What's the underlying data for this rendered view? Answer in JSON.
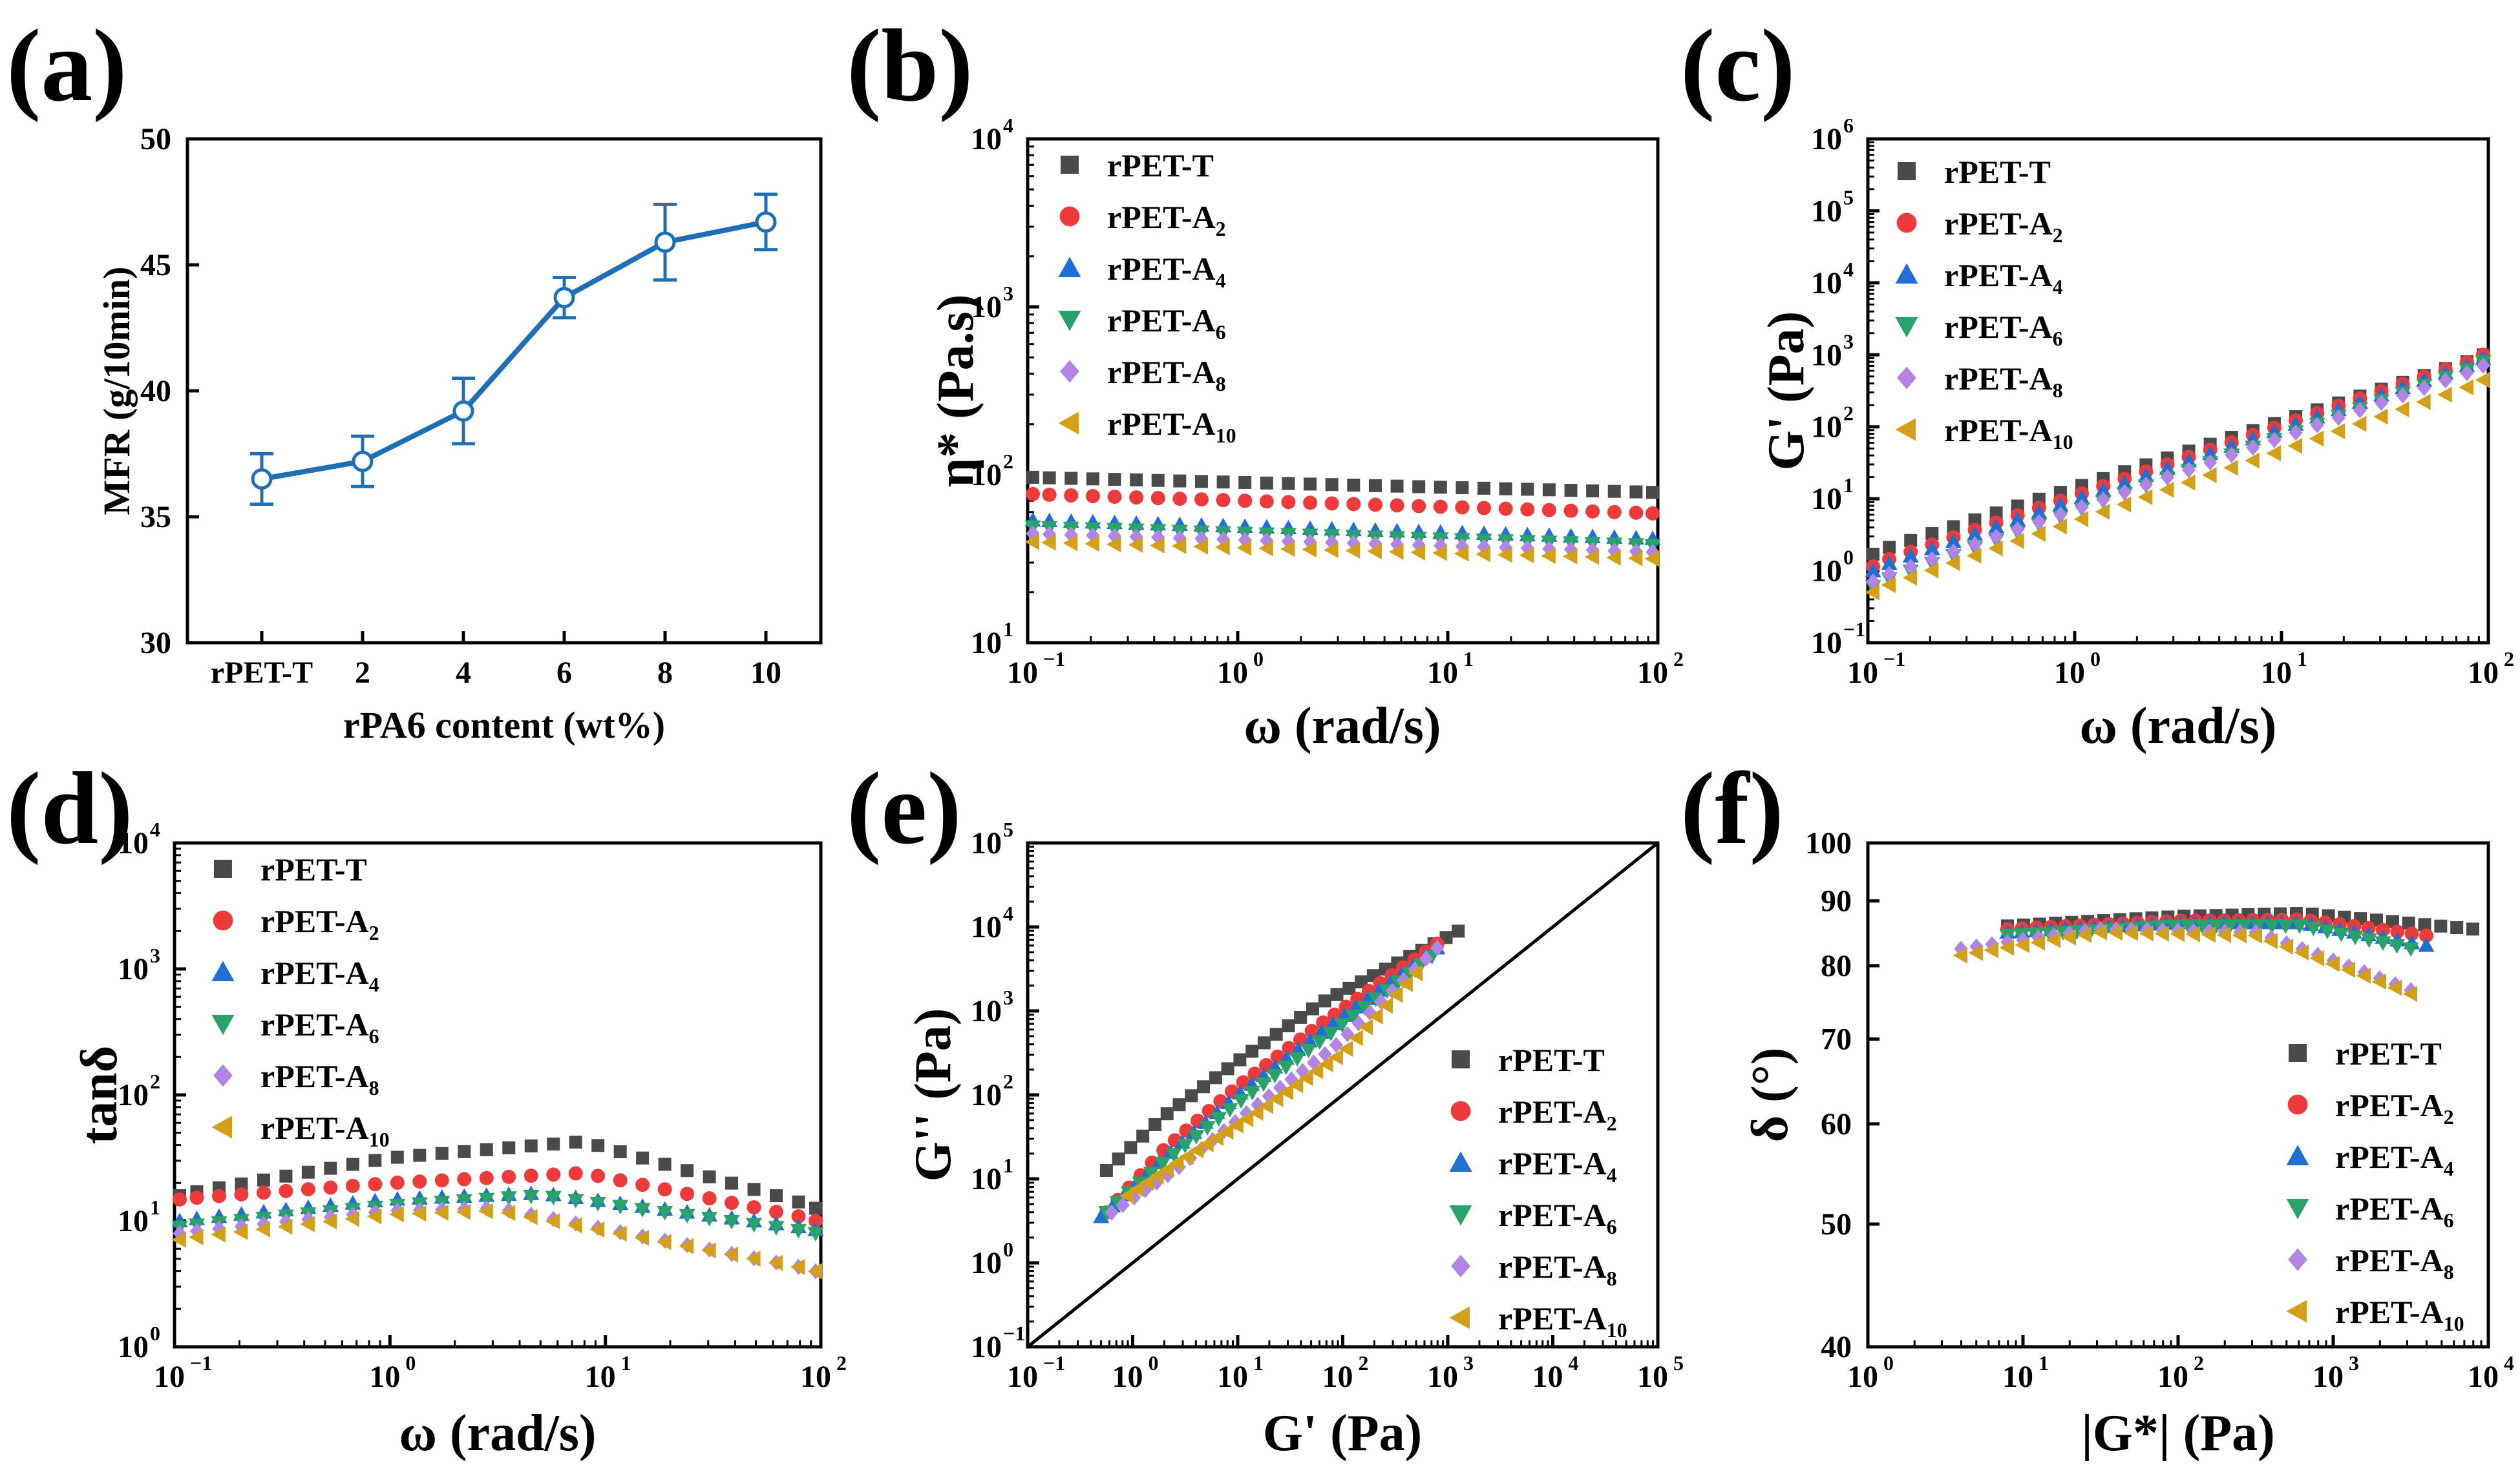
{
  "series_styles": [
    {
      "name": "rPET-T",
      "sub": "",
      "color": "#4a4a4a",
      "marker": "square"
    },
    {
      "name": "rPET-A",
      "sub": "2",
      "color": "#ee3a3a",
      "marker": "circle"
    },
    {
      "name": "rPET-A",
      "sub": "4",
      "color": "#1f6fd6",
      "marker": "triangle-up"
    },
    {
      "name": "rPET-A",
      "sub": "6",
      "color": "#2aa36b",
      "marker": "triangle-down"
    },
    {
      "name": "rPET-A",
      "sub": "8",
      "color": "#b184e6",
      "marker": "diamond"
    },
    {
      "name": "rPET-A",
      "sub": "10",
      "color": "#d4a017",
      "marker": "triangle-left"
    }
  ],
  "chart_data": [
    {
      "id": "a",
      "panel_label": "(a)",
      "type": "line",
      "xlabel": "rPA6 content (wt%)",
      "ylabel": "MFR (g/10min)",
      "categories": [
        "rPET-T",
        "2",
        "4",
        "6",
        "8",
        "10"
      ],
      "values": [
        36.5,
        37.2,
        39.2,
        43.7,
        45.9,
        46.7
      ],
      "errors": [
        1.0,
        1.0,
        1.3,
        0.8,
        1.5,
        1.1
      ],
      "ylim": [
        30,
        50
      ],
      "yticks": [
        "30",
        "35",
        "40",
        "45",
        "50"
      ],
      "color": "#1f6fb4"
    },
    {
      "id": "b",
      "panel_label": "(b)",
      "type": "scatter",
      "xscale": "log",
      "yscale": "log",
      "xlabel": "ω (rad/s)",
      "ylabel": "η* (Pa.s)",
      "xlim_exp": [
        -1,
        2
      ],
      "ylim_exp": [
        1,
        4
      ],
      "legend": "top-left",
      "series": [
        {
          "name": "rPET-T",
          "x_exp": [
            -1,
            2
          ],
          "y_exp": [
            1.985,
            1.895
          ]
        },
        {
          "name": "rPET-A2",
          "x_exp": [
            -1,
            2
          ],
          "y_exp": [
            1.885,
            1.77
          ]
        },
        {
          "name": "rPET-A4",
          "x_exp": [
            -1,
            2
          ],
          "y_exp": [
            1.73,
            1.62
          ]
        },
        {
          "name": "rPET-A6",
          "x_exp": [
            -1,
            2
          ],
          "y_exp": [
            1.69,
            1.58
          ]
        },
        {
          "name": "rPET-A8",
          "x_exp": [
            -1,
            2
          ],
          "y_exp": [
            1.65,
            1.54
          ]
        },
        {
          "name": "rPET-A10",
          "x_exp": [
            -1,
            2
          ],
          "y_exp": [
            1.6,
            1.5
          ]
        }
      ]
    },
    {
      "id": "c",
      "panel_label": "(c)",
      "type": "scatter",
      "xscale": "log",
      "yscale": "log",
      "xlabel": "ω (rad/s)",
      "ylabel": "G' (Pa)",
      "xlim_exp": [
        -1,
        2
      ],
      "ylim_exp": [
        -1,
        6
      ],
      "legend": "top-left",
      "series": [
        {
          "name": "rPET-T",
          "x_exp": [
            -1,
            2
          ],
          "y_exp": [
            0.23,
            3.0
          ]
        },
        {
          "name": "rPET-A2",
          "x_exp": [
            -1,
            2
          ],
          "y_exp": [
            0.06,
            3.0
          ]
        },
        {
          "name": "rPET-A4",
          "x_exp": [
            -1,
            2
          ],
          "y_exp": [
            0.0,
            2.95
          ]
        },
        {
          "name": "rPET-A6",
          "x_exp": [
            -1,
            2
          ],
          "y_exp": [
            -0.22,
            2.9
          ]
        },
        {
          "name": "rPET-A8",
          "x_exp": [
            -1,
            2
          ],
          "y_exp": [
            -0.15,
            2.85
          ]
        },
        {
          "name": "rPET-A10",
          "x_exp": [
            -1,
            2
          ],
          "y_exp": [
            -0.3,
            2.65
          ]
        }
      ]
    },
    {
      "id": "d",
      "panel_label": "(d)",
      "type": "scatter",
      "xscale": "log",
      "yscale": "log",
      "xlabel": "ω (rad/s)",
      "ylabel": "tanδ",
      "xlim_exp": [
        -1,
        2
      ],
      "ylim_exp": [
        0,
        4
      ],
      "legend": "top-left",
      "series": [
        {
          "name": "rPET-T",
          "x_exp": [
            -1,
            0,
            0.9,
            2
          ],
          "y_exp": [
            1.2,
            1.5,
            1.63,
            1.1
          ]
        },
        {
          "name": "rPET-A2",
          "x_exp": [
            -1,
            0,
            0.9,
            2
          ],
          "y_exp": [
            1.17,
            1.3,
            1.38,
            1.0
          ]
        },
        {
          "name": "rPET-A4",
          "x_exp": [
            -1,
            0,
            0.7,
            2
          ],
          "y_exp": [
            1.0,
            1.17,
            1.22,
            0.93
          ]
        },
        {
          "name": "rPET-A6",
          "x_exp": [
            -1,
            0,
            0.7,
            2
          ],
          "y_exp": [
            0.95,
            1.12,
            1.2,
            0.9
          ]
        },
        {
          "name": "rPET-A8",
          "x_exp": [
            -1,
            0,
            0.5,
            2
          ],
          "y_exp": [
            0.9,
            1.08,
            1.1,
            0.6
          ]
        },
        {
          "name": "rPET-A10",
          "x_exp": [
            -1,
            0,
            0.5,
            2
          ],
          "y_exp": [
            0.85,
            1.05,
            1.08,
            0.6
          ]
        }
      ]
    },
    {
      "id": "e",
      "panel_label": "(e)",
      "type": "scatter",
      "xscale": "log",
      "yscale": "log",
      "xlabel": "G' (Pa)",
      "ylabel": "G'' (Pa)",
      "xlim_exp": [
        -1,
        5
      ],
      "ylim_exp": [
        -1,
        5
      ],
      "legend": "bottom-right",
      "reference_line": "y = x",
      "series": [
        {
          "name": "rPET-T",
          "x_exp": [
            -0.25,
            0.3,
            1.0,
            1.8,
            3.1
          ],
          "y_exp": [
            1.1,
            1.75,
            2.4,
            3.1,
            3.95
          ]
        },
        {
          "name": "rPET-A2",
          "x_exp": [
            -0.25,
            0.3,
            1.0,
            1.8,
            2.9
          ],
          "y_exp": [
            0.6,
            1.35,
            2.1,
            2.85,
            3.8
          ]
        },
        {
          "name": "rPET-A4",
          "x_exp": [
            -0.3,
            0.3,
            1.0,
            1.8,
            2.9
          ],
          "y_exp": [
            0.55,
            1.25,
            2.0,
            2.75,
            3.75
          ]
        },
        {
          "name": "rPET-A6",
          "x_exp": [
            -0.25,
            0.3,
            1.0,
            1.8,
            2.85
          ],
          "y_exp": [
            0.6,
            1.2,
            1.9,
            2.65,
            3.65
          ]
        },
        {
          "name": "rPET-A8",
          "x_exp": [
            -0.2,
            0.4,
            1.1,
            1.9,
            2.9
          ],
          "y_exp": [
            0.6,
            1.1,
            1.8,
            2.55,
            3.75
          ]
        },
        {
          "name": "rPET-A10",
          "x_exp": [
            -0.05,
            0.5,
            1.2,
            2.0,
            2.7
          ],
          "y_exp": [
            0.8,
            1.25,
            1.8,
            2.5,
            3.45
          ]
        }
      ]
    },
    {
      "id": "f",
      "panel_label": "(f)",
      "type": "scatter",
      "xscale": "log",
      "yscale": "log",
      "xlabel": "|G*| (Pa)",
      "ylabel": "δ (°)",
      "xlim_exp": [
        0,
        4
      ],
      "ylim": [
        40,
        100
      ],
      "yticks": [
        "40",
        "50",
        "60",
        "70",
        "80",
        "90",
        "100"
      ],
      "legend": "bottom-right",
      "series": [
        {
          "name": "rPET-T",
          "x_exp": [
            0.9,
            2.0,
            2.8,
            3.9
          ],
          "y": [
            86.0,
            87.5,
            88.0,
            85.5
          ]
        },
        {
          "name": "rPET-A2",
          "x_exp": [
            0.9,
            2.0,
            2.8,
            3.6
          ],
          "y": [
            85.5,
            86.8,
            87.0,
            84.5
          ]
        },
        {
          "name": "rPET-A4",
          "x_exp": [
            0.9,
            2.0,
            2.8,
            3.6
          ],
          "y": [
            85.0,
            86.5,
            86.5,
            83.0
          ]
        },
        {
          "name": "rPET-A6",
          "x_exp": [
            0.9,
            2.0,
            2.8,
            3.5
          ],
          "y": [
            84.5,
            86.0,
            86.0,
            82.5
          ]
        },
        {
          "name": "rPET-A8",
          "x_exp": [
            0.6,
            1.5,
            2.5,
            3.5
          ],
          "y": [
            82.5,
            85.5,
            85.0,
            76.5
          ]
        },
        {
          "name": "rPET-A10",
          "x_exp": [
            0.6,
            1.5,
            2.5,
            3.5
          ],
          "y": [
            81.5,
            85.0,
            84.5,
            76.0
          ]
        }
      ]
    }
  ]
}
